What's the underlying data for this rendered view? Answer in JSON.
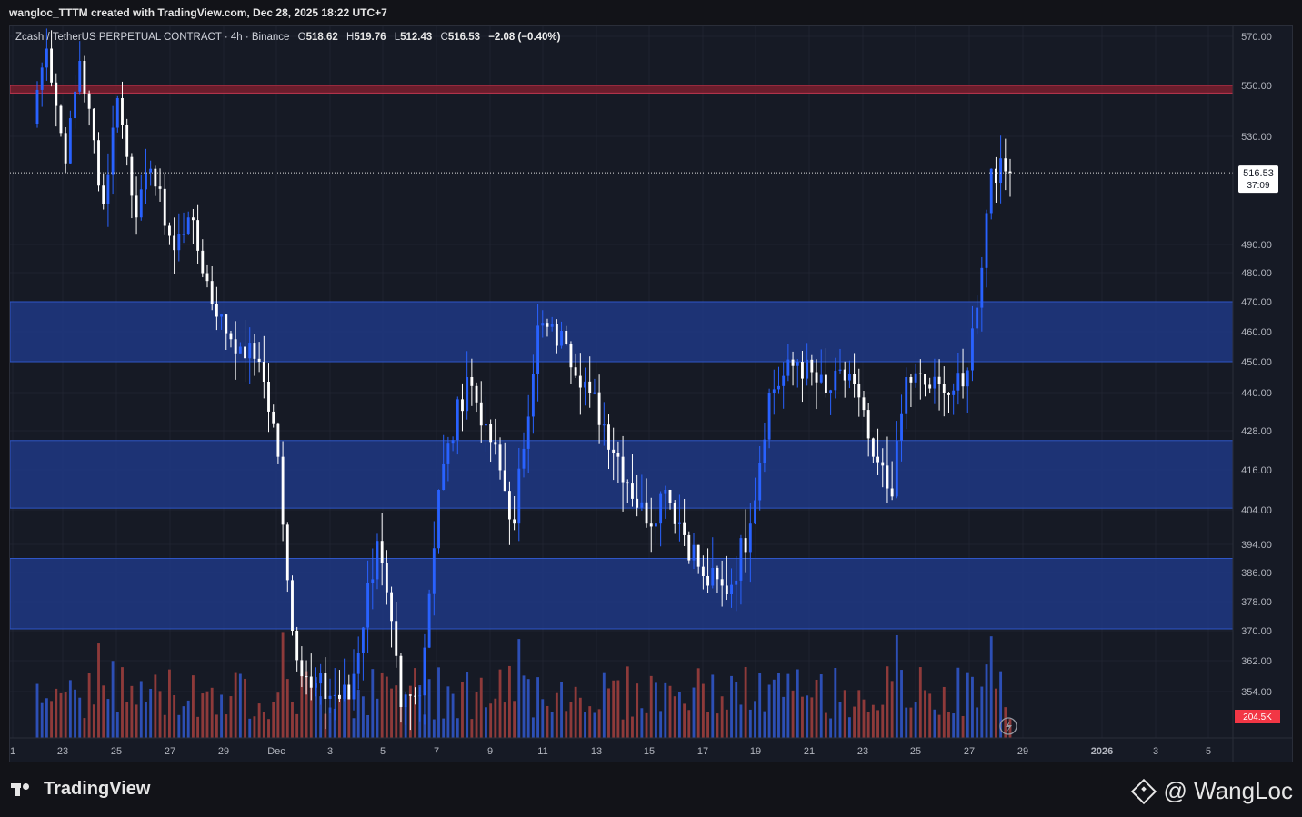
{
  "header": {
    "created_text": "wangloc_TTTM created with TradingView.com, Dec 28, 2025 18:22 UTC+7"
  },
  "legend": {
    "symbol": "Zcash / TetherUS PERPETUAL CONTRACT · 4h · Binance",
    "o_label": "O",
    "o_value": "518.62",
    "h_label": "H",
    "h_value": "519.76",
    "l_label": "L",
    "l_value": "512.43",
    "c_label": "C",
    "c_value": "516.53",
    "change": "−2.08 (−0.40%)"
  },
  "footer": {
    "brand": "TradingView",
    "watermark": "@ WangLoc"
  },
  "colors": {
    "up": "#2962ff",
    "down": "#ffffff",
    "vol_up": "#2d4fb5",
    "vol_down": "#8e3a3a",
    "zone": "#1f3a8a",
    "resistance": "#7a1f2e",
    "badge_bg": "#ffffff",
    "vol_badge_bg": "#f23645"
  },
  "chart_data": {
    "type": "candlestick",
    "price_axis": {
      "ticks": [
        "570.00",
        "550.00",
        "530.00",
        "490.00",
        "480.00",
        "470.00",
        "460.00",
        "450.00",
        "440.00",
        "428.00",
        "416.00",
        "404.00",
        "394.00",
        "386.00",
        "378.00",
        "370.00",
        "362.00",
        "354.00"
      ],
      "tick_values": [
        570,
        550,
        530,
        490,
        480,
        470,
        460,
        450,
        440,
        428,
        416,
        404,
        394,
        386,
        378,
        370,
        362,
        354
      ]
    },
    "time_axis": {
      "labels": [
        "1",
        "23",
        "25",
        "27",
        "29",
        "Dec",
        "3",
        "5",
        "7",
        "9",
        "11",
        "13",
        "15",
        "17",
        "19",
        "21",
        "23",
        "25",
        "27",
        "29",
        "2026",
        "3",
        "5"
      ]
    },
    "current_price": {
      "value": "516.53",
      "countdown": "37:09"
    },
    "volume_badge": "204.5K",
    "zones": [
      {
        "kind": "resistance",
        "from": 547,
        "to": 550
      },
      {
        "kind": "support",
        "from": 450,
        "to": 470
      },
      {
        "kind": "support",
        "from": 404.5,
        "to": 425
      },
      {
        "kind": "support",
        "from": 370.5,
        "to": 390
      }
    ],
    "segments": [
      {
        "close": 565,
        "bars": 3
      },
      {
        "close": 520,
        "bars": 4
      },
      {
        "close": 560,
        "bars": 3
      },
      {
        "close": 505,
        "bars": 5
      },
      {
        "close": 545,
        "bars": 3
      },
      {
        "close": 500,
        "bars": 4
      },
      {
        "close": 518,
        "bars": 3
      },
      {
        "close": 488,
        "bars": 5
      },
      {
        "close": 500,
        "bars": 3
      },
      {
        "close": 465,
        "bars": 6
      },
      {
        "close": 455,
        "bars": 5
      },
      {
        "close": 450,
        "bars": 4
      },
      {
        "close": 420,
        "bars": 4
      },
      {
        "close": 370,
        "bars": 3
      },
      {
        "close": 355,
        "bars": 4
      },
      {
        "close": 352,
        "bars": 8
      },
      {
        "close": 395,
        "bars": 6
      },
      {
        "close": 350,
        "bars": 5
      },
      {
        "close": 353,
        "bars": 4
      },
      {
        "close": 410,
        "bars": 4
      },
      {
        "close": 445,
        "bars": 6
      },
      {
        "close": 430,
        "bars": 4
      },
      {
        "close": 400,
        "bars": 6
      },
      {
        "close": 462,
        "bars": 5
      },
      {
        "close": 456,
        "bars": 6
      },
      {
        "close": 440,
        "bars": 5
      },
      {
        "close": 420,
        "bars": 6
      },
      {
        "close": 400,
        "bars": 6
      },
      {
        "close": 410,
        "bars": 4
      },
      {
        "close": 385,
        "bars": 8
      },
      {
        "close": 380,
        "bars": 5
      },
      {
        "close": 400,
        "bars": 5
      },
      {
        "close": 440,
        "bars": 4
      },
      {
        "close": 450,
        "bars": 6
      },
      {
        "close": 440,
        "bars": 6
      },
      {
        "close": 446,
        "bars": 5
      },
      {
        "close": 420,
        "bars": 5
      },
      {
        "close": 408,
        "bars": 4
      },
      {
        "close": 445,
        "bars": 3
      },
      {
        "close": 440,
        "bars": 8
      },
      {
        "close": 442,
        "bars": 4
      },
      {
        "close": 468,
        "bars": 3
      },
      {
        "close": 518,
        "bars": 3
      },
      {
        "close": 516.53,
        "bars": 4
      }
    ]
  }
}
